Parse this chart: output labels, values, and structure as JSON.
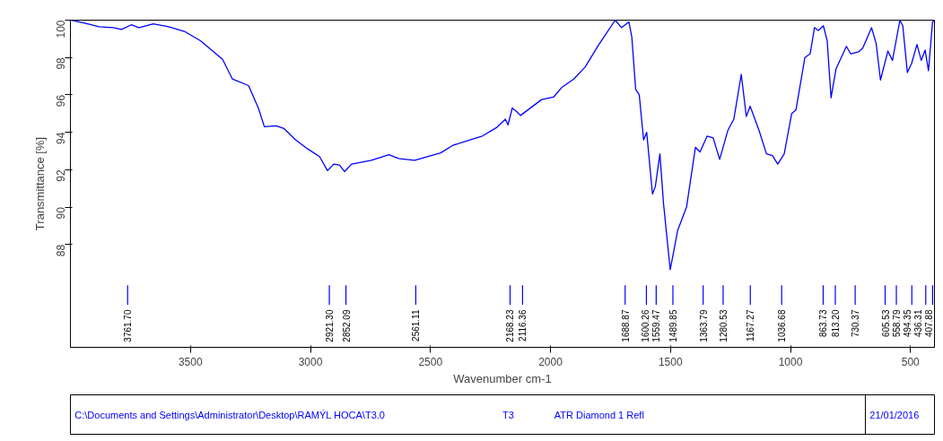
{
  "chart_data": {
    "type": "line",
    "xlabel": "Wavenumber cm-1",
    "ylabel": "Transmittance [%]",
    "xlim": [
      4000,
      400
    ],
    "ylim": [
      82.5,
      100
    ],
    "xticks": [
      3500,
      3000,
      2500,
      2000,
      1500,
      1000,
      500
    ],
    "yticks": [
      88,
      90,
      92,
      94,
      96,
      98,
      100
    ],
    "grid": false,
    "marker": "none",
    "line_style": "solid",
    "x": [
      3995,
      3928,
      3880,
      3821,
      3787,
      3747,
      3714,
      3655,
      3590,
      3525,
      3458,
      3366,
      3325,
      3258,
      3217,
      3192,
      3143,
      3110,
      3062,
      3010,
      2962,
      2929,
      2903,
      2879,
      2858,
      2829,
      2747,
      2673,
      2632,
      2566,
      2514,
      2458,
      2407,
      2333,
      2284,
      2225,
      2188,
      2177,
      2159,
      2140,
      2125,
      2037,
      1986,
      1953,
      1903,
      1855,
      1803,
      1772,
      1730,
      1704,
      1673,
      1661,
      1645,
      1630,
      1612,
      1599,
      1575,
      1563,
      1544,
      1529,
      1501,
      1470,
      1433,
      1396,
      1377,
      1347,
      1322,
      1295,
      1261,
      1236,
      1205,
      1184,
      1168,
      1131,
      1100,
      1075,
      1053,
      1026,
      995,
      977,
      940,
      918,
      900,
      884,
      863,
      847,
      831,
      810,
      767,
      749,
      717,
      699,
      662,
      643,
      625,
      594,
      575,
      544,
      532,
      513,
      495,
      473,
      455,
      439,
      425,
      408,
      400
    ],
    "series": [
      {
        "color": "#0000ff",
        "values": [
          100,
          99.8,
          99.65,
          99.6,
          99.5,
          99.75,
          99.6,
          99.8,
          99.65,
          99.4,
          98.9,
          97.9,
          96.85,
          96.5,
          95.3,
          94.3,
          94.35,
          94.2,
          93.6,
          93.1,
          92.7,
          91.95,
          92.3,
          92.25,
          91.9,
          92.3,
          92.5,
          92.8,
          92.6,
          92.5,
          92.7,
          92.9,
          93.3,
          93.6,
          93.8,
          94.25,
          94.7,
          94.4,
          95.3,
          95.1,
          94.9,
          95.75,
          95.9,
          96.4,
          96.85,
          97.5,
          98.6,
          99.2,
          100,
          99.6,
          99.9,
          99.1,
          96.3,
          96.0,
          93.6,
          94.0,
          90.7,
          91.1,
          92.85,
          90.2,
          86.65,
          88.75,
          90.0,
          93.2,
          92.95,
          93.8,
          93.7,
          92.55,
          94.1,
          94.7,
          97.1,
          94.85,
          95.4,
          94.1,
          92.85,
          92.75,
          92.3,
          92.85,
          95.0,
          95.2,
          98.0,
          98.2,
          99.6,
          99.45,
          99.7,
          98.9,
          95.85,
          97.4,
          98.6,
          98.2,
          98.3,
          98.5,
          99.6,
          98.75,
          96.8,
          98.35,
          97.85,
          100,
          99.7,
          97.2,
          97.7,
          98.7,
          97.85,
          98.4,
          97.3,
          99.9,
          100
        ]
      }
    ],
    "ref_lines": [
      {
        "axis": "x",
        "value": 3761.7,
        "label": "3761.70"
      },
      {
        "axis": "x",
        "value": 2921.3,
        "label": "2921.30"
      },
      {
        "axis": "x",
        "value": 2852.09,
        "label": "2852.09"
      },
      {
        "axis": "x",
        "value": 2561.11,
        "label": "2561.11"
      },
      {
        "axis": "x",
        "value": 2168.23,
        "label": "2168.23"
      },
      {
        "axis": "x",
        "value": 2116.36,
        "label": "2116.36"
      },
      {
        "axis": "x",
        "value": 1688.87,
        "label": "1688.87"
      },
      {
        "axis": "x",
        "value": 1600.26,
        "label": "1600.26"
      },
      {
        "axis": "x",
        "value": 1559.47,
        "label": "1559.47"
      },
      {
        "axis": "x",
        "value": 1489.85,
        "label": "1489.85"
      },
      {
        "axis": "x",
        "value": 1363.79,
        "label": "1363.79"
      },
      {
        "axis": "x",
        "value": 1280.53,
        "label": "1280.53"
      },
      {
        "axis": "x",
        "value": 1167.27,
        "label": "1167.27"
      },
      {
        "axis": "x",
        "value": 1036.68,
        "label": "1036.68"
      },
      {
        "axis": "x",
        "value": 863.73,
        "label": "863.73"
      },
      {
        "axis": "x",
        "value": 813.2,
        "label": "813.20"
      },
      {
        "axis": "x",
        "value": 730.37,
        "label": "730.37"
      },
      {
        "axis": "x",
        "value": 605.53,
        "label": "605.53"
      },
      {
        "axis": "x",
        "value": 558.79,
        "label": "558.79"
      },
      {
        "axis": "x",
        "value": 494.35,
        "label": "494.35"
      },
      {
        "axis": "x",
        "value": 436.31,
        "label": "436.31"
      },
      {
        "axis": "x",
        "value": 407.88,
        "label": "407.88"
      }
    ],
    "annotations": [
      "C:\\Documents and Settings\\Administrator\\Desktop\\RAMÝL HOCA\\T3.0",
      "T3",
      "ATR Diamond 1 Refl",
      "21/01/2016"
    ]
  }
}
